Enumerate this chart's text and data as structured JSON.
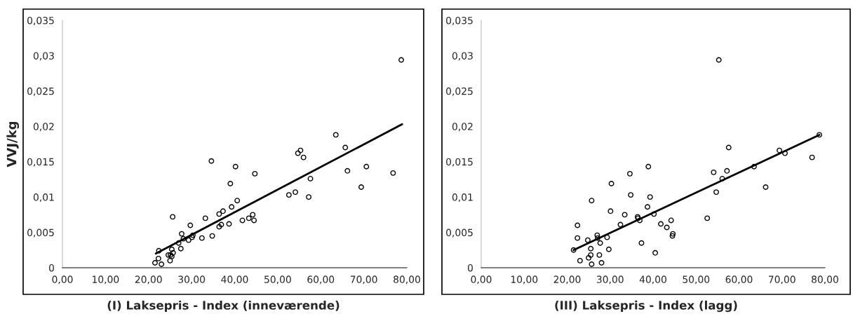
{
  "chart_data": [
    {
      "type": "scatter",
      "xlabel": "(I) Laksepris - Index (inneværende)",
      "ylabel": "VVJ/kg",
      "grid": false,
      "xlim": [
        0,
        80
      ],
      "ylim": [
        0,
        0.035
      ],
      "xticks": [
        {
          "value": 0,
          "label": "0,00"
        },
        {
          "value": 10,
          "label": "10,00"
        },
        {
          "value": 20,
          "label": "20,00"
        },
        {
          "value": 30,
          "label": "30,00"
        },
        {
          "value": 40,
          "label": "40,00"
        },
        {
          "value": 50,
          "label": "50,00"
        },
        {
          "value": 60,
          "label": "60,00"
        },
        {
          "value": 70,
          "label": "70,00"
        },
        {
          "value": 80,
          "label": "80,00"
        }
      ],
      "yticks": [
        {
          "value": 0,
          "label": "0"
        },
        {
          "value": 0.005,
          "label": "0,005"
        },
        {
          "value": 0.01,
          "label": "0,01"
        },
        {
          "value": 0.015,
          "label": "0,015"
        },
        {
          "value": 0.02,
          "label": "0,02"
        },
        {
          "value": 0.025,
          "label": "0,025"
        },
        {
          "value": 0.03,
          "label": "0,03"
        },
        {
          "value": 0.035,
          "label": "0,035"
        }
      ],
      "series": [
        {
          "marker": "circle",
          "color": "#000000",
          "x": [
            21.5,
            22.3,
            22.4,
            23.0,
            24.6,
            25.0,
            25.1,
            25.4,
            25.4,
            25.7,
            25.6,
            27.0,
            27.5,
            27.7,
            28.1,
            29.3,
            29.7,
            30.1,
            30.3,
            32.4,
            33.2,
            34.6,
            34.8,
            36.4,
            36.4,
            36.9,
            37.3,
            38.7,
            39.0,
            39.3,
            40.2,
            40.6,
            41.8,
            43.3,
            44.2,
            44.5,
            44.7,
            52.6,
            54.1,
            54.7,
            55.3,
            56.0,
            57.2,
            57.6,
            63.5,
            65.7,
            66.2,
            69.4,
            70.6,
            76.8,
            78.7
          ],
          "values": [
            0.0007,
            0.0013,
            0.0024,
            0.0005,
            0.0018,
            0.001,
            0.0018,
            0.0016,
            0.0026,
            0.0021,
            0.0072,
            0.0035,
            0.0027,
            0.0048,
            0.0041,
            0.0039,
            0.006,
            0.0043,
            0.0046,
            0.0042,
            0.007,
            0.0151,
            0.0045,
            0.0076,
            0.0058,
            0.0061,
            0.008,
            0.0062,
            0.0119,
            0.0086,
            0.0143,
            0.0095,
            0.0067,
            0.007,
            0.0075,
            0.0067,
            0.0133,
            0.0103,
            0.0107,
            0.0162,
            0.0166,
            0.0156,
            0.01,
            0.0126,
            0.0188,
            0.017,
            0.0137,
            0.0114,
            0.0143,
            0.0134,
            0.0294
          ]
        },
        {
          "type": "line",
          "color": "#000000",
          "x": [
            21.7,
            78.9
          ],
          "values": [
            0.002,
            0.0203
          ]
        }
      ]
    },
    {
      "type": "scatter",
      "xlabel": "(III) Laksepris - Index (lagg)",
      "grid": false,
      "xlim": [
        0,
        80
      ],
      "ylim": [
        0,
        0.035
      ],
      "xticks": [
        {
          "value": 0,
          "label": "0,00"
        },
        {
          "value": 10,
          "label": "10,00"
        },
        {
          "value": 20,
          "label": "20,00"
        },
        {
          "value": 30,
          "label": "30,00"
        },
        {
          "value": 40,
          "label": "40,00"
        },
        {
          "value": 50,
          "label": "50,00"
        },
        {
          "value": 60,
          "label": "60,00"
        },
        {
          "value": 70,
          "label": "70,00"
        },
        {
          "value": 80,
          "label": "80,00"
        }
      ],
      "yticks": [
        {
          "value": 0,
          "label": "0"
        },
        {
          "value": 0.005,
          "label": "0,005"
        },
        {
          "value": 0.01,
          "label": "0,01"
        },
        {
          "value": 0.015,
          "label": "0,015"
        },
        {
          "value": 0.02,
          "label": "0,02"
        },
        {
          "value": 0.025,
          "label": "0,025"
        },
        {
          "value": 0.03,
          "label": "0,03"
        },
        {
          "value": 0.035,
          "label": "0,035"
        }
      ],
      "series": [
        {
          "marker": "circle",
          "color": "#000000",
          "x": [
            21.5,
            22.4,
            22.4,
            23.0,
            24.8,
            25.0,
            25.5,
            25.5,
            25.7,
            25.7,
            27.0,
            27.1,
            27.5,
            27.7,
            28.0,
            29.3,
            29.7,
            30.1,
            30.3,
            32.4,
            33.4,
            34.6,
            34.8,
            36.4,
            36.5,
            36.9,
            37.3,
            38.7,
            38.9,
            39.3,
            40.2,
            40.5,
            41.8,
            43.2,
            44.2,
            44.5,
            44.6,
            52.6,
            54.1,
            54.7,
            55.3,
            56.1,
            57.2,
            57.6,
            63.5,
            66.2,
            69.4,
            70.7,
            77.0,
            78.7
          ],
          "values": [
            0.0025,
            0.006,
            0.0042,
            0.001,
            0.0039,
            0.0014,
            0.0018,
            0.0027,
            0.0005,
            0.0095,
            0.0046,
            0.0042,
            0.0018,
            0.0035,
            0.0007,
            0.0043,
            0.0026,
            0.008,
            0.0119,
            0.0061,
            0.0075,
            0.0133,
            0.0103,
            0.0072,
            0.007,
            0.0067,
            0.0035,
            0.0086,
            0.0143,
            0.01,
            0.0076,
            0.0021,
            0.0062,
            0.0057,
            0.0067,
            0.0045,
            0.0048,
            0.007,
            0.0135,
            0.0107,
            0.0294,
            0.0126,
            0.0137,
            0.017,
            0.0143,
            0.0114,
            0.0166,
            0.0162,
            0.0156,
            0.0188
          ]
        },
        {
          "type": "line",
          "color": "#000000",
          "x": [
            21.5,
            78.7
          ],
          "values": [
            0.0025,
            0.0188
          ]
        }
      ]
    }
  ]
}
